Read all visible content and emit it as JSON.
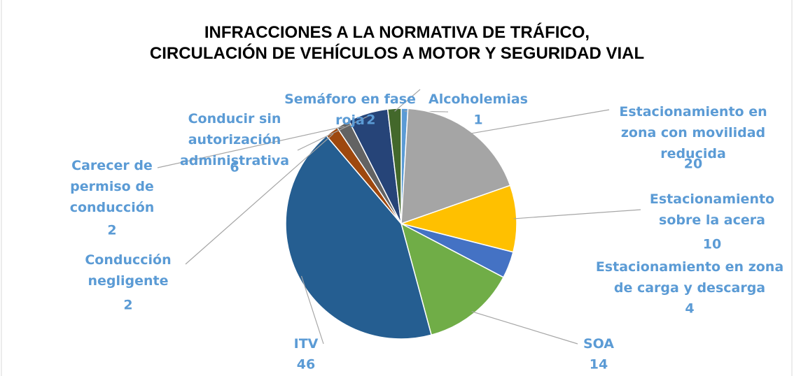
{
  "chart_data": {
    "type": "pie",
    "title": "INFRACCIONES A LA NORMATIVA DE TRÁFICO, CIRCULACIÓN DE VEHÍCULOS A MOTOR Y SEGURIDAD VIAL",
    "categories": [
      "Alcoholemias",
      "Estacionamiento en zona con movilidad reducida",
      "Estacionamiento sobre la acera",
      "Estacionamiento en zona de carga y descarga",
      "SOA",
      "ITV",
      "Conducción negligente",
      "Carecer de permiso de conducción",
      "Conducir sin autorización administrativa",
      "Semáforo en fase roja"
    ],
    "values": [
      1,
      20,
      10,
      4,
      14,
      46,
      2,
      2,
      6,
      2
    ],
    "colors": [
      "#5b9bd5",
      "#a5a5a5",
      "#ffc000",
      "#4472c4",
      "#70ad47",
      "#255e91",
      "#9e480e",
      "#636363",
      "#264478",
      "#43682b"
    ]
  }
}
